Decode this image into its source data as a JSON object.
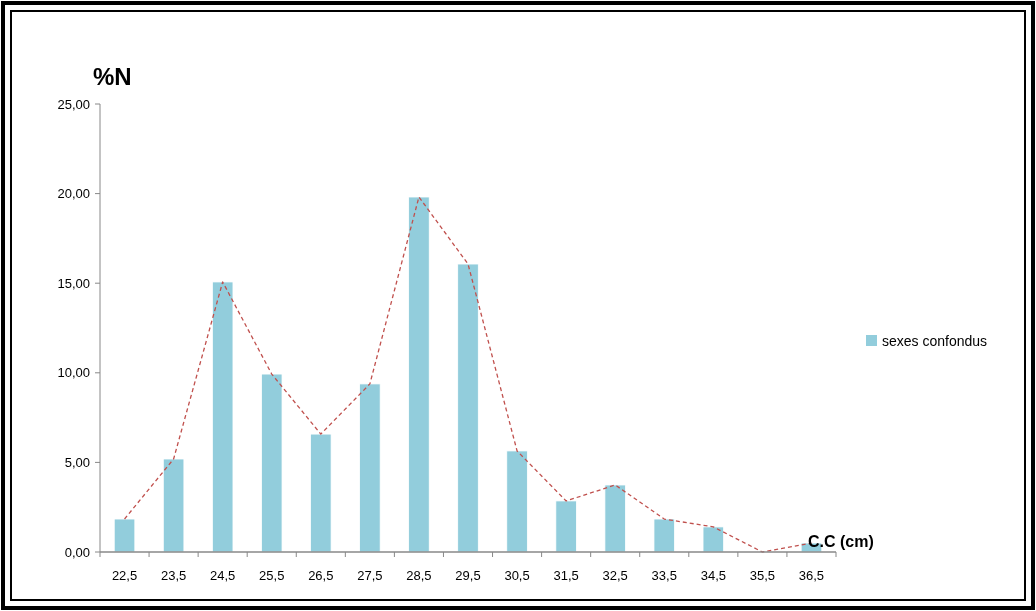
{
  "chart_data": {
    "type": "bar",
    "ylabel": "%N",
    "xlabel": "C.C (cm)",
    "categories": [
      "22,5",
      "23,5",
      "24,5",
      "25,5",
      "26,5",
      "27,5",
      "28,5",
      "29,5",
      "30,5",
      "31,5",
      "32,5",
      "33,5",
      "34,5",
      "35,5",
      "36,5"
    ],
    "series": [
      {
        "name": "sexes confondus",
        "color": "#92cddc",
        "values": [
          1.84,
          5.19,
          15.07,
          9.93,
          6.58,
          9.38,
          19.81,
          16.07,
          5.64,
          2.85,
          3.74,
          1.84,
          1.4,
          0,
          0.5
        ]
      },
      {
        "type": "line",
        "color": "#c0504d",
        "line_style": "dashed",
        "marker": "none",
        "values": [
          1.84,
          5.19,
          15.07,
          9.93,
          6.58,
          9.38,
          19.81,
          16.07,
          5.64,
          2.85,
          3.74,
          1.84,
          1.4,
          0,
          0.5
        ]
      }
    ],
    "ylim": [
      0,
      25
    ],
    "yticks": [
      {
        "value": 0,
        "label": "0,00"
      },
      {
        "value": 5,
        "label": "5,00"
      },
      {
        "value": 10,
        "label": "10,00"
      },
      {
        "value": 15,
        "label": "15,00"
      },
      {
        "value": 20,
        "label": "20,00"
      },
      {
        "value": 25,
        "label": "25,00"
      }
    ],
    "grid": false,
    "legend": "right"
  }
}
